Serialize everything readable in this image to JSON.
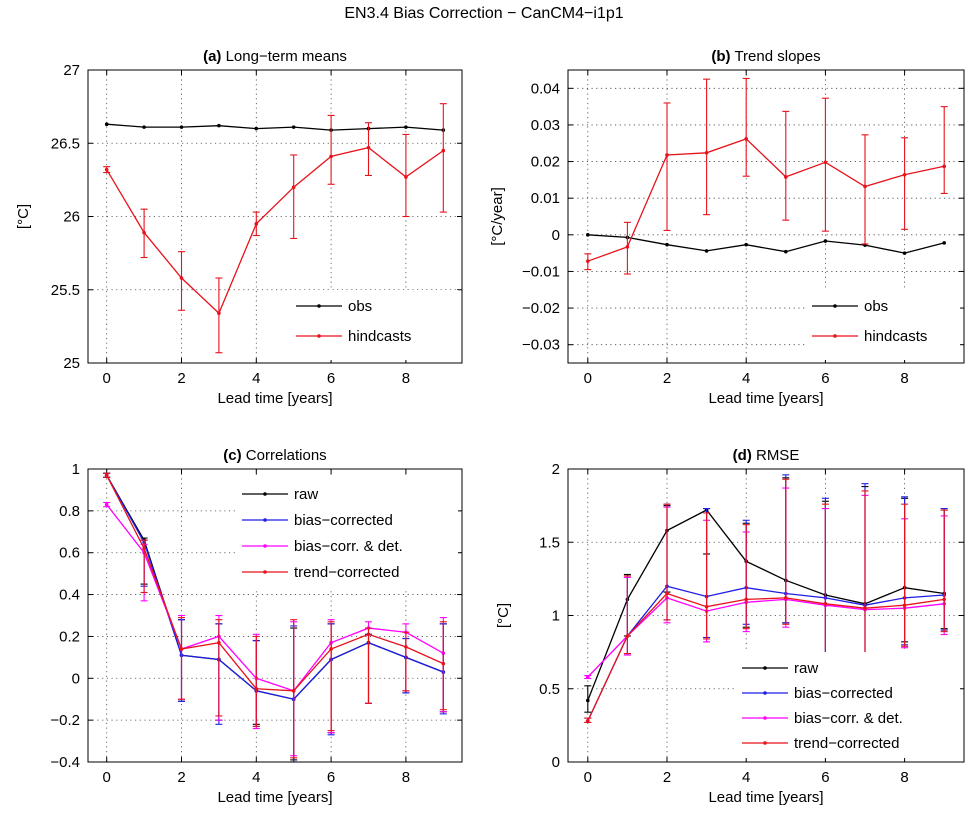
{
  "figure_title": "EN3.4 Bias Correction − CanCM4−i1p1",
  "colors": {
    "black": "#000000",
    "red": "#e8121b",
    "blue": "#1f1fe6",
    "magenta": "#ff00ff"
  },
  "chart_data": [
    {
      "id": "a",
      "type": "line",
      "title_prefix": "(a)",
      "title": "Long−term means",
      "xlabel": "Lead time [years]",
      "ylabel": "[°C]",
      "xlim": [
        -0.5,
        9.5
      ],
      "ylim": [
        25,
        27
      ],
      "xticks": [
        0,
        2,
        4,
        6,
        8
      ],
      "yticks": [
        25,
        25.5,
        26,
        26.5,
        27
      ],
      "ytick_labels": [
        "25",
        "25.5",
        "26",
        "26.5",
        "27"
      ],
      "grid": true,
      "legend": "bottom-right",
      "x": [
        0,
        1,
        2,
        3,
        4,
        5,
        6,
        7,
        8,
        9
      ],
      "series": [
        {
          "name": "obs",
          "color": "black",
          "values": [
            26.63,
            26.61,
            26.61,
            26.62,
            26.6,
            26.61,
            26.59,
            26.6,
            26.61,
            26.59
          ]
        },
        {
          "name": "hindcasts",
          "color": "red",
          "values": [
            26.32,
            25.89,
            25.58,
            25.34,
            25.95,
            26.2,
            26.41,
            26.47,
            26.27,
            26.45
          ],
          "error": [
            [
              26.3,
              26.34
            ],
            [
              25.72,
              26.05
            ],
            [
              25.36,
              25.76
            ],
            [
              25.07,
              25.58
            ],
            [
              25.87,
              26.03
            ],
            [
              25.85,
              26.42
            ],
            [
              26.22,
              26.69
            ],
            [
              26.28,
              26.64
            ],
            [
              26.0,
              26.56
            ],
            [
              26.03,
              26.77
            ]
          ]
        }
      ]
    },
    {
      "id": "b",
      "type": "line",
      "title_prefix": "(b)",
      "title": "Trend slopes",
      "xlabel": "Lead time [years]",
      "ylabel": "[°C/year]",
      "xlim": [
        -0.5,
        9.5
      ],
      "ylim": [
        -0.035,
        0.045
      ],
      "xticks": [
        0,
        2,
        4,
        6,
        8
      ],
      "yticks": [
        -0.03,
        -0.02,
        -0.01,
        0,
        0.01,
        0.02,
        0.03,
        0.04
      ],
      "ytick_labels": [
        "−0.03",
        "−0.02",
        "−0.01",
        "0",
        "0.01",
        "0.02",
        "0.03",
        "0.04"
      ],
      "grid": true,
      "legend": "bottom-right",
      "x": [
        0,
        1,
        2,
        3,
        4,
        5,
        6,
        7,
        8,
        9
      ],
      "series": [
        {
          "name": "obs",
          "color": "black",
          "values": [
            0.0,
            -0.0007,
            -0.0027,
            -0.0044,
            -0.0027,
            -0.0046,
            -0.0017,
            -0.0028,
            -0.005,
            -0.0022
          ]
        },
        {
          "name": "hindcasts",
          "color": "red",
          "values": [
            -0.0072,
            -0.0033,
            0.0218,
            0.0224,
            0.0262,
            0.0158,
            0.0198,
            0.0132,
            0.0164,
            0.0187
          ],
          "error": [
            [
              -0.0095,
              -0.0052
            ],
            [
              -0.0107,
              0.0034
            ],
            [
              0.0012,
              0.036
            ],
            [
              0.0055,
              0.0425
            ],
            [
              0.016,
              0.0427
            ],
            [
              0.004,
              0.0337
            ],
            [
              0.001,
              0.0373
            ],
            [
              -0.0025,
              0.0273
            ],
            [
              0.0015,
              0.0265
            ],
            [
              0.0113,
              0.035
            ]
          ]
        }
      ]
    },
    {
      "id": "c",
      "type": "line",
      "title_prefix": "(c)",
      "title": "Correlations",
      "xlabel": "Lead time [years]",
      "ylabel": "",
      "xlim": [
        -0.5,
        9.5
      ],
      "ylim": [
        -0.4,
        1
      ],
      "xticks": [
        0,
        2,
        4,
        6,
        8
      ],
      "yticks": [
        -0.4,
        -0.2,
        0,
        0.2,
        0.4,
        0.6,
        0.8,
        1
      ],
      "ytick_labels": [
        "−0.4",
        "−0.2",
        "0",
        "0.2",
        "0.4",
        "0.6",
        "0.8",
        "1"
      ],
      "grid": true,
      "legend": "top-right",
      "x": [
        0,
        1,
        2,
        3,
        4,
        5,
        6,
        7,
        8,
        9
      ],
      "series": [
        {
          "name": "raw",
          "color": "black",
          "values": [
            0.97,
            0.66,
            0.11,
            0.09,
            -0.06,
            -0.1,
            0.09,
            0.17,
            0.1,
            0.03
          ],
          "error": [
            [
              0.96,
              0.98
            ],
            [
              0.45,
              0.67
            ],
            [
              -0.11,
              0.28
            ],
            [
              -0.2,
              0.26
            ],
            [
              -0.22,
              0.18
            ],
            [
              -0.39,
              0.24
            ],
            [
              -0.26,
              0.26
            ],
            [
              -0.12,
              0.21
            ],
            [
              -0.07,
              0.19
            ],
            [
              -0.16,
              0.26
            ]
          ]
        },
        {
          "name": "bias−corrected",
          "color": "blue",
          "values": [
            0.97,
            0.65,
            0.11,
            0.09,
            -0.06,
            -0.1,
            0.09,
            0.17,
            0.1,
            0.03
          ],
          "error": [
            [
              0.96,
              0.98
            ],
            [
              0.44,
              0.66
            ],
            [
              -0.11,
              0.28
            ],
            [
              -0.22,
              0.26
            ],
            [
              -0.23,
              0.18
            ],
            [
              -0.4,
              0.25
            ],
            [
              -0.27,
              0.26
            ],
            [
              -0.12,
              0.21
            ],
            [
              -0.07,
              0.19
            ],
            [
              -0.17,
              0.26
            ]
          ]
        },
        {
          "name": "bias−corr. & det.",
          "color": "magenta",
          "values": [
            0.83,
            0.6,
            0.14,
            0.2,
            0.0,
            -0.06,
            0.17,
            0.24,
            0.22,
            0.12
          ],
          "error": [
            [
              0.82,
              0.84
            ],
            [
              0.37,
              0.64
            ],
            [
              -0.1,
              0.3
            ],
            [
              -0.2,
              0.3
            ],
            [
              -0.24,
              0.21
            ],
            [
              -0.37,
              0.27
            ],
            [
              -0.26,
              0.28
            ],
            [
              -0.12,
              0.27
            ],
            [
              -0.06,
              0.26
            ],
            [
              -0.16,
              0.29
            ]
          ]
        },
        {
          "name": "trend−corrected",
          "color": "red",
          "values": [
            0.97,
            0.62,
            0.14,
            0.17,
            -0.05,
            -0.06,
            0.14,
            0.21,
            0.15,
            0.07
          ],
          "error": [
            [
              0.96,
              0.98
            ],
            [
              0.41,
              0.66
            ],
            [
              -0.1,
              0.29
            ],
            [
              -0.18,
              0.28
            ],
            [
              -0.23,
              0.2
            ],
            [
              -0.38,
              0.28
            ],
            [
              -0.25,
              0.27
            ],
            [
              -0.12,
              0.24
            ],
            [
              -0.06,
              0.22
            ],
            [
              -0.15,
              0.27
            ]
          ]
        }
      ]
    },
    {
      "id": "d",
      "type": "line",
      "title_prefix": "(d)",
      "title": "RMSE",
      "xlabel": "Lead time [years]",
      "ylabel": "[°C]",
      "xlim": [
        -0.5,
        9.5
      ],
      "ylim": [
        0,
        2
      ],
      "xticks": [
        0,
        2,
        4,
        6,
        8
      ],
      "yticks": [
        0,
        0.5,
        1,
        1.5,
        2
      ],
      "ytick_labels": [
        "0",
        "0.5",
        "1",
        "1.5",
        "2"
      ],
      "grid": true,
      "legend": "bottom-right",
      "x": [
        0,
        1,
        2,
        3,
        4,
        5,
        6,
        7,
        8,
        9
      ],
      "series": [
        {
          "name": "raw",
          "color": "black",
          "values": [
            0.42,
            1.11,
            1.58,
            1.72,
            1.37,
            1.24,
            1.14,
            1.08,
            1.19,
            1.15
          ],
          "error": [
            [
              0.34,
              0.52
            ],
            [
              0.86,
              1.28
            ],
            [
              1.16,
              1.75
            ],
            [
              1.42,
              1.73
            ],
            [
              0.92,
              1.63
            ],
            [
              0.95,
              1.94
            ],
            [
              0.73,
              1.78
            ],
            [
              0.74,
              1.88
            ],
            [
              0.82,
              1.8
            ],
            [
              0.91,
              1.72
            ]
          ]
        },
        {
          "name": "bias−corrected",
          "color": "blue",
          "values": [
            0.28,
            0.86,
            1.2,
            1.13,
            1.19,
            1.15,
            1.12,
            1.07,
            1.12,
            1.14
          ],
          "error": [
            [
              0.27,
              0.3
            ],
            [
              0.74,
              1.27
            ],
            [
              0.97,
              1.76
            ],
            [
              0.85,
              1.73
            ],
            [
              0.94,
              1.65
            ],
            [
              0.95,
              1.96
            ],
            [
              0.73,
              1.8
            ],
            [
              0.73,
              1.9
            ],
            [
              0.8,
              1.81
            ],
            [
              0.9,
              1.73
            ]
          ]
        },
        {
          "name": "bias−corr. & det.",
          "color": "magenta",
          "values": [
            0.58,
            0.86,
            1.12,
            1.03,
            1.09,
            1.11,
            1.07,
            1.04,
            1.05,
            1.08
          ],
          "error": [
            [
              0.57,
              0.59
            ],
            [
              0.73,
              1.26
            ],
            [
              0.95,
              1.74
            ],
            [
              0.82,
              1.65
            ],
            [
              0.89,
              1.57
            ],
            [
              0.92,
              1.87
            ],
            [
              0.71,
              1.73
            ],
            [
              0.72,
              1.82
            ],
            [
              0.78,
              1.66
            ],
            [
              0.87,
              1.68
            ]
          ]
        },
        {
          "name": "trend−corrected",
          "color": "red",
          "values": [
            0.28,
            0.86,
            1.15,
            1.06,
            1.11,
            1.12,
            1.08,
            1.05,
            1.07,
            1.11
          ],
          "error": [
            [
              0.27,
              0.3
            ],
            [
              0.74,
              1.27
            ],
            [
              0.97,
              1.76
            ],
            [
              0.84,
              1.7
            ],
            [
              0.91,
              1.62
            ],
            [
              0.94,
              1.93
            ],
            [
              0.72,
              1.76
            ],
            [
              0.73,
              1.85
            ],
            [
              0.79,
              1.76
            ],
            [
              0.89,
              1.72
            ]
          ]
        }
      ]
    }
  ]
}
